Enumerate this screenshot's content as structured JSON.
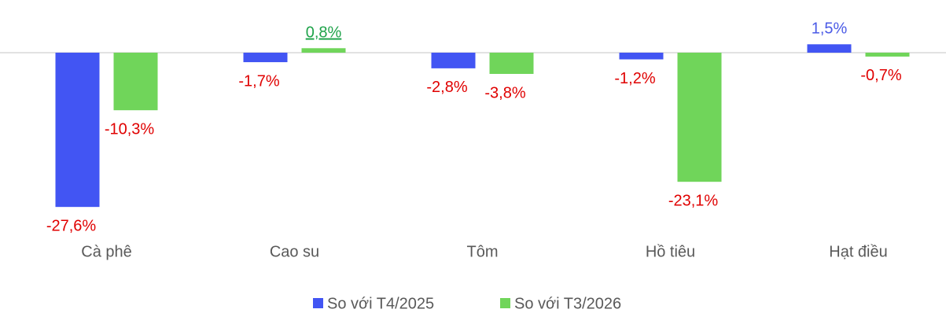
{
  "chart_data": {
    "type": "bar",
    "categories": [
      "Cà phê",
      "Cao su",
      "Tôm",
      "Hồ tiêu",
      "Hạt điều"
    ],
    "series": [
      {
        "name": "So với T4/2025",
        "color": "#4255f3",
        "label_color": "#4a5ae6",
        "values": [
          -27.6,
          -1.7,
          -2.8,
          -1.2,
          1.5
        ],
        "value_labels": [
          "-27,6%",
          "-1,7%",
          "-2,8%",
          "-1,2%",
          "1,5%"
        ]
      },
      {
        "name": "So với T3/2026",
        "color": "#70d55a",
        "label_color": "#1fa34a",
        "values": [
          -10.3,
          0.8,
          -3.8,
          -23.1,
          -0.7
        ],
        "value_labels": [
          "-10,3%",
          "0,8%",
          "-3,8%",
          "-23,1%",
          "-0,7%"
        ]
      }
    ],
    "negative_label_color": "#e00000",
    "ylim": [
      -28,
      9
    ]
  }
}
